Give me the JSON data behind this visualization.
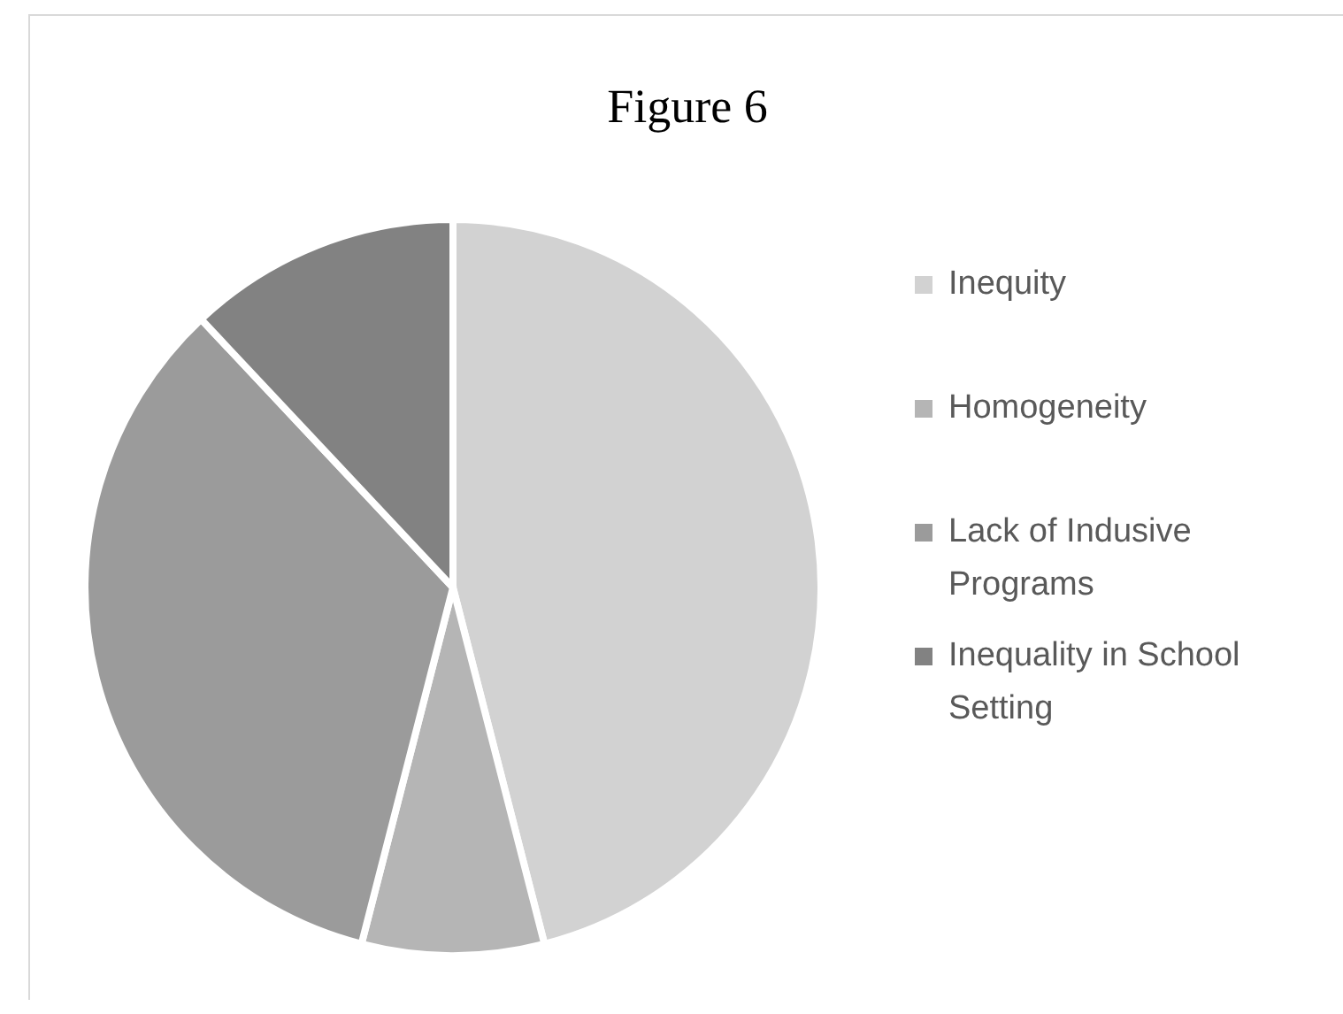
{
  "chart_data": {
    "type": "pie",
    "title": "Figure 6",
    "categories": [
      "Inequity",
      "Homogeneity",
      "Lack of Indusive Programs",
      "Inequality in School Setting"
    ],
    "values": [
      46,
      8,
      34,
      12
    ],
    "colors": [
      "#d2d2d2",
      "#b5b5b5",
      "#9b9b9b",
      "#828282"
    ],
    "legend": "right"
  }
}
